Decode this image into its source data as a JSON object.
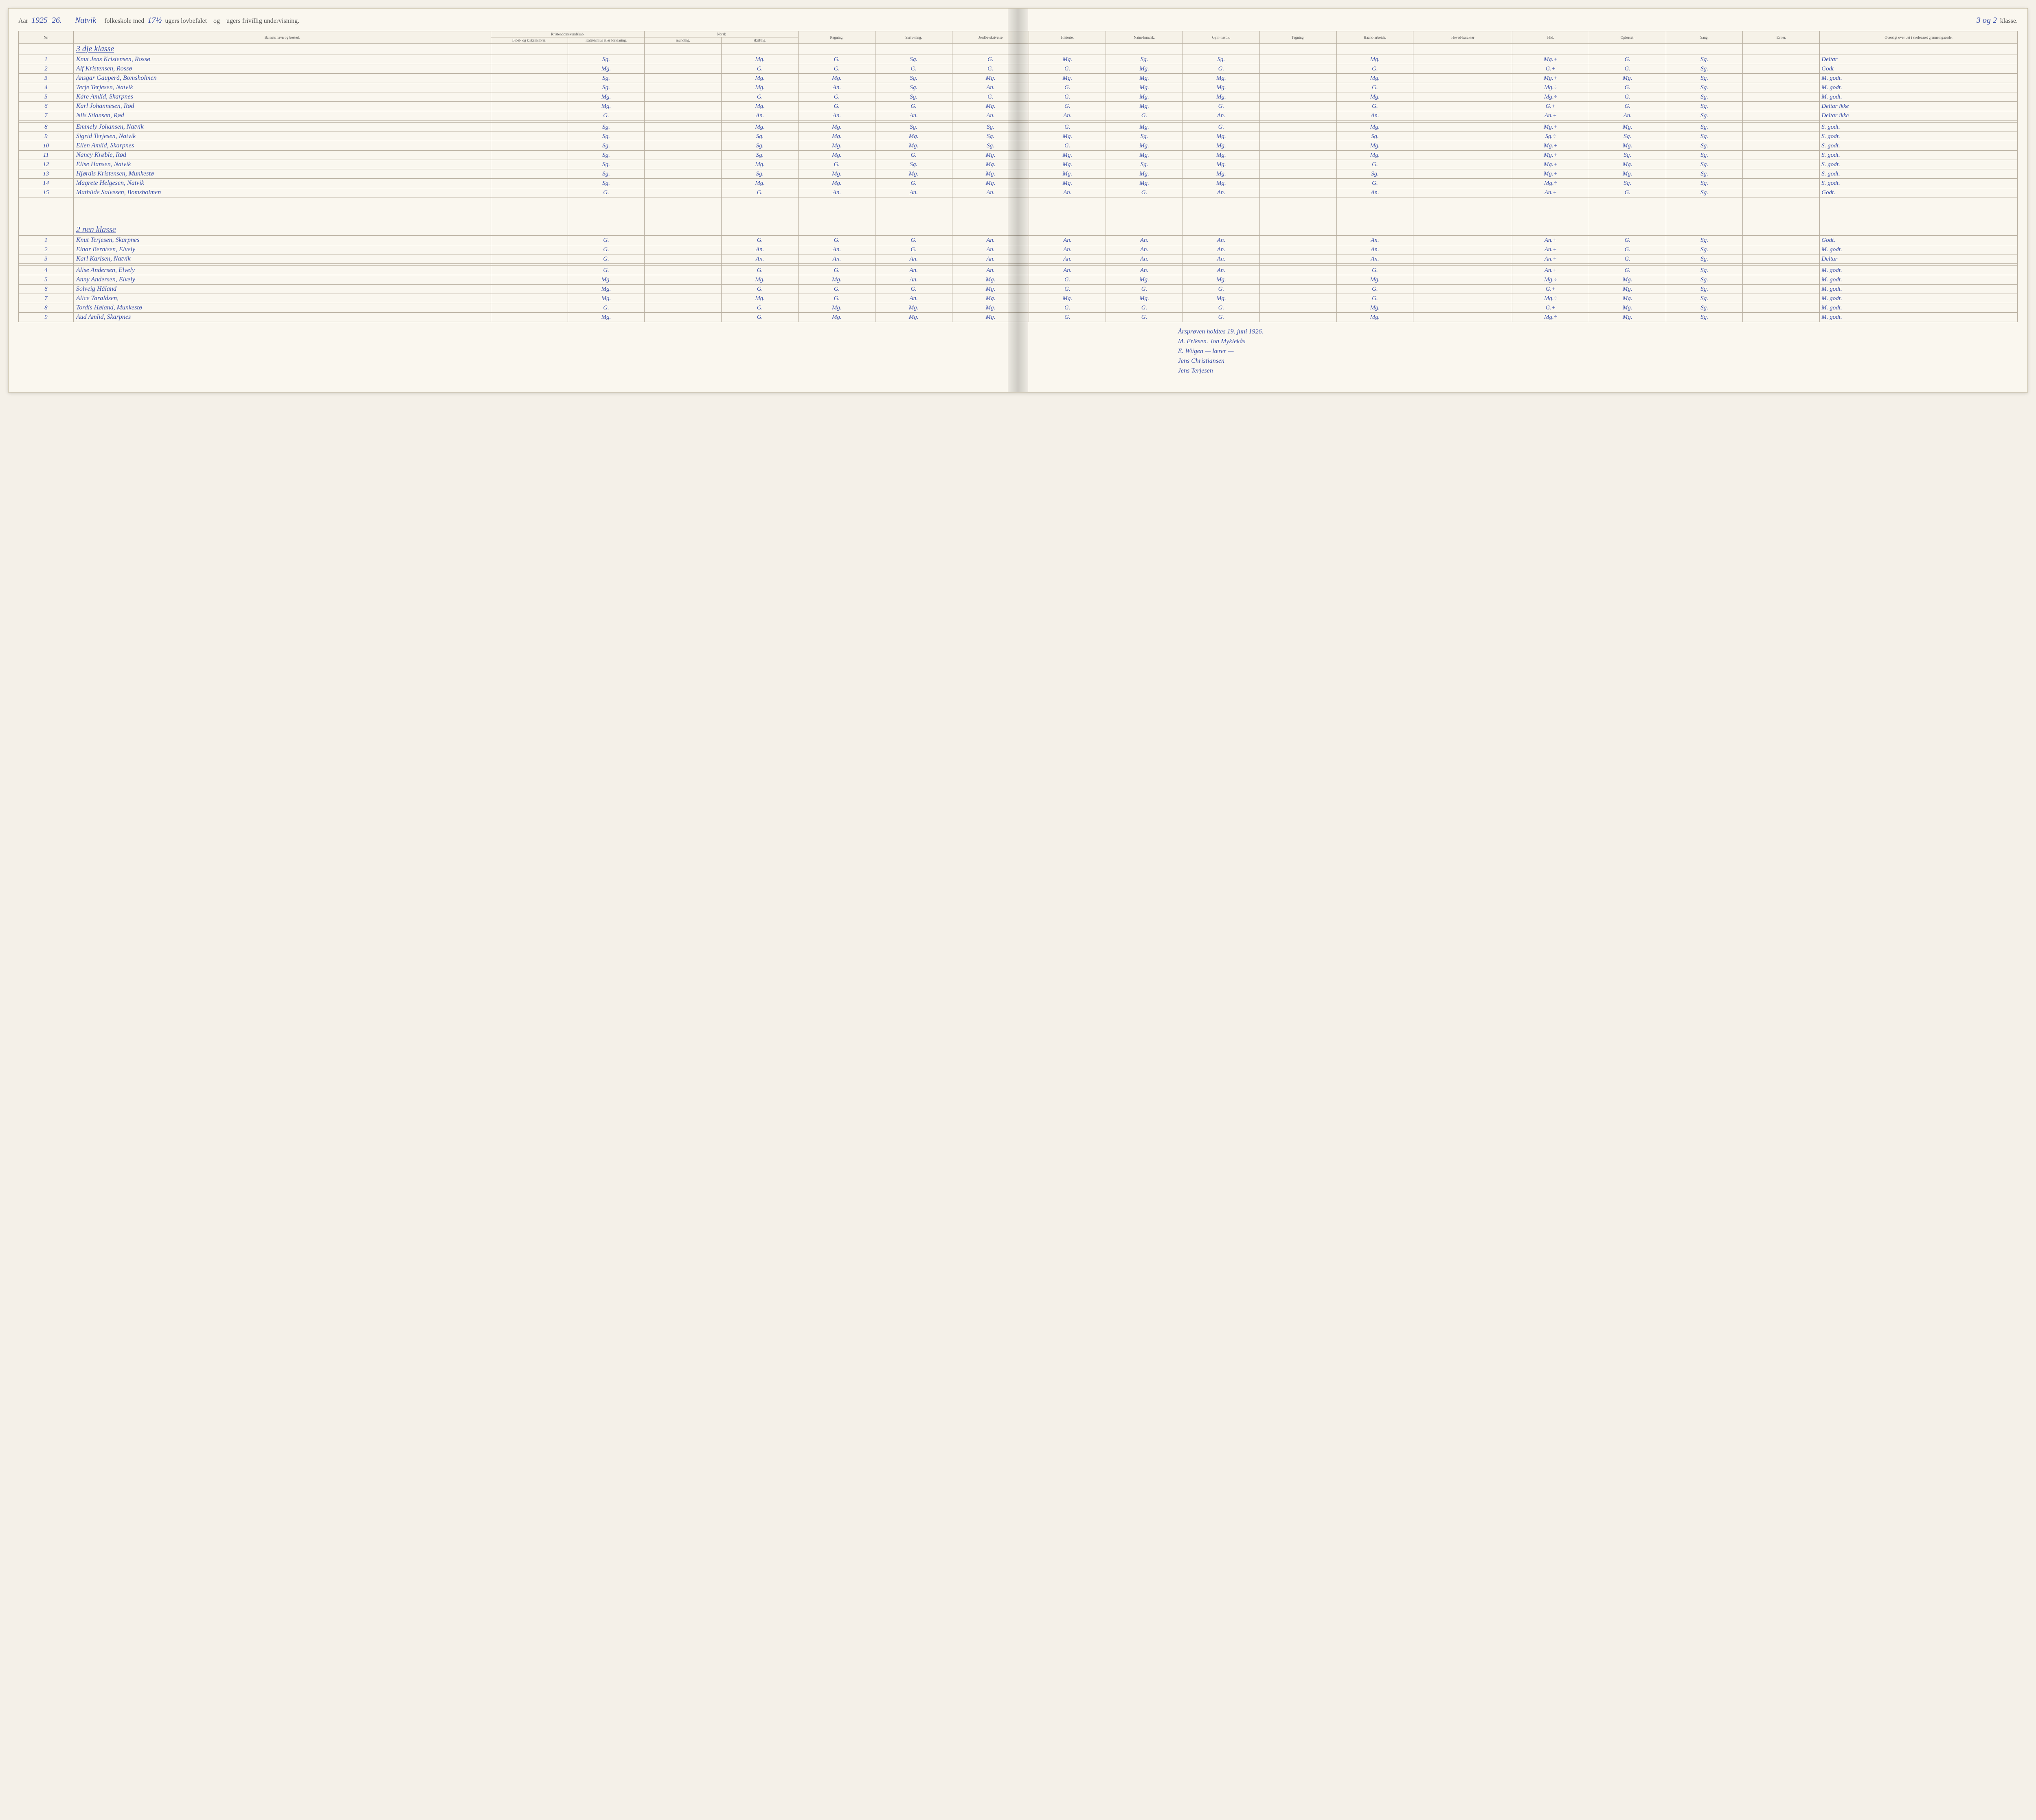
{
  "header": {
    "aar_label": "Aar",
    "aar_value": "1925–26.",
    "school_name": "Natvik",
    "printed_1": "folkeskole med",
    "weeks_lov": "17½",
    "printed_2": "ugers lovbefalet",
    "printed_3": "og",
    "weeks_friv": "",
    "printed_4": "ugers frivillig undervisning.",
    "klasse_prefix": "3 og 2",
    "klasse_label": "klasse."
  },
  "columns": {
    "nr": "Nr.",
    "navn": "Barnets navn og bosted.",
    "kristgrp": "Kristendomskundskab.",
    "krist_a": "Bibel- og kirkehistorie.",
    "krist_b": "Katekismus eller forklaring.",
    "norskgrp": "Norsk",
    "norsk_a": "mundtlig.",
    "norsk_b": "skriftlig.",
    "regning": "Regning.",
    "skrivning": "Skriv-ning.",
    "jordb": "Jordbe-skrivelse",
    "historie": "Historie.",
    "natur": "Natur-kundsk.",
    "gym": "Gym-nastik.",
    "tegning": "Tegning.",
    "haand": "Haand-arbeide.",
    "hoved": "Hoved-karakter",
    "flid": "Flid.",
    "opf": "Opførsel.",
    "sang": "Sang.",
    "evner": "Evner.",
    "oversigt": "Oversigt over det i skoleaaret gjennemgaaede."
  },
  "sections": [
    {
      "title": "3 dje klasse",
      "rows": [
        {
          "nr": "1",
          "name": "Knut Jens Kristensen, Rossø",
          "g": [
            "",
            "Sg.",
            "",
            "Mg.",
            "G.",
            "Sg.",
            "G.",
            "Mg.",
            "Sg.",
            "Sg.",
            "",
            "Mg.",
            "",
            "Mg.+",
            "G.",
            "Sg.",
            "",
            ""
          ],
          "ov": "Deltar"
        },
        {
          "nr": "2",
          "name": "Alf Kristensen, Rossø",
          "g": [
            "",
            "Mg.",
            "",
            "G.",
            "G.",
            "G.",
            "G.",
            "G.",
            "Mg.",
            "G.",
            "",
            "G.",
            "",
            "G.+",
            "G.",
            "Sg.",
            "",
            ""
          ],
          "ov": "Godt"
        },
        {
          "nr": "3",
          "name": "Ansgar Gauperå, Bomsholmen",
          "g": [
            "",
            "Sg.",
            "",
            "Mg.",
            "Mg.",
            "Sg.",
            "Mg.",
            "Mg.",
            "Mg.",
            "Mg.",
            "",
            "Mg.",
            "",
            "Mg.+",
            "Mg.",
            "Sg.",
            "",
            ""
          ],
          "ov": "M. godt."
        },
        {
          "nr": "4",
          "name": "Terje Terjesen, Natvik",
          "g": [
            "",
            "Sg.",
            "",
            "Mg.",
            "An.",
            "Sg.",
            "An.",
            "G.",
            "Mg.",
            "Mg.",
            "",
            "G.",
            "",
            "Mg.÷",
            "G.",
            "Sg.",
            "",
            ""
          ],
          "ov": "M. godt."
        },
        {
          "nr": "5",
          "name": "Kåre Amlid, Skarpnes",
          "g": [
            "",
            "Mg.",
            "",
            "G.",
            "G.",
            "Sg.",
            "G.",
            "G.",
            "Mg.",
            "Mg.",
            "",
            "Mg.",
            "",
            "Mg.÷",
            "G.",
            "Sg.",
            "",
            ""
          ],
          "ov": "M. godt."
        },
        {
          "nr": "6",
          "name": "Karl Johannesen, Rød",
          "g": [
            "",
            "Mg.",
            "",
            "Mg.",
            "G.",
            "G.",
            "Mg.",
            "G.",
            "Mg.",
            "G.",
            "",
            "G.",
            "",
            "G.+",
            "G.",
            "Sg.",
            "",
            ""
          ],
          "ov": "Deltar ikke"
        },
        {
          "nr": "7",
          "name": "Nils Stiansen, Rød",
          "g": [
            "",
            "G.",
            "",
            "An.",
            "An.",
            "An.",
            "An.",
            "An.",
            "G.",
            "An.",
            "",
            "An.",
            "",
            "An.+",
            "An.",
            "Sg.",
            "",
            ""
          ],
          "ov": "Deltar ikke"
        },
        {
          "nr": "",
          "name": "",
          "g": [
            "",
            "",
            "",
            "",
            "",
            "",
            "",
            "",
            "",
            "",
            "",
            "",
            "",
            "",
            "",
            "",
            "",
            ""
          ],
          "ov": ""
        },
        {
          "nr": "8",
          "name": "Emmely Johansen, Natvik",
          "g": [
            "",
            "Sg.",
            "",
            "Mg.",
            "Mg.",
            "Sg.",
            "Sg.",
            "G.",
            "Mg.",
            "G.",
            "",
            "Mg.",
            "",
            "Mg.+",
            "Mg.",
            "Sg.",
            "",
            ""
          ],
          "ov": "S. godt."
        },
        {
          "nr": "9",
          "name": "Sigrid Terjesen, Natvik",
          "g": [
            "",
            "Sg.",
            "",
            "Sg.",
            "Mg.",
            "Mg.",
            "Sg.",
            "Mg.",
            "Sg.",
            "Mg.",
            "",
            "Sg.",
            "",
            "Sg.÷",
            "Sg.",
            "Sg.",
            "",
            ""
          ],
          "ov": "S. godt."
        },
        {
          "nr": "10",
          "name": "Ellen Amlid, Skarpnes",
          "g": [
            "",
            "Sg.",
            "",
            "Sg.",
            "Mg.",
            "Mg.",
            "Sg.",
            "G.",
            "Mg.",
            "Mg.",
            "",
            "Mg.",
            "",
            "Mg.+",
            "Mg.",
            "Sg.",
            "",
            ""
          ],
          "ov": "S. godt."
        },
        {
          "nr": "11",
          "name": "Nancy Krøble, Rød",
          "g": [
            "",
            "Sg.",
            "",
            "Sg.",
            "Mg.",
            "G.",
            "Mg.",
            "Mg.",
            "Mg.",
            "Mg.",
            "",
            "Mg.",
            "",
            "Mg.+",
            "Sg.",
            "Sg.",
            "",
            ""
          ],
          "ov": "S. godt."
        },
        {
          "nr": "12",
          "name": "Elise Hansen, Natvik",
          "g": [
            "",
            "Sg.",
            "",
            "Mg.",
            "G.",
            "Sg.",
            "Mg.",
            "Mg.",
            "Sg.",
            "Mg.",
            "",
            "G.",
            "",
            "Mg.+",
            "Mg.",
            "Sg.",
            "",
            ""
          ],
          "ov": "S. godt."
        },
        {
          "nr": "13",
          "name": "Hjørdis Kristensen, Munkestø",
          "g": [
            "",
            "Sg.",
            "",
            "Sg.",
            "Mg.",
            "Mg.",
            "Mg.",
            "Mg.",
            "Mg.",
            "Mg.",
            "",
            "Sg.",
            "",
            "Mg.+",
            "Mg.",
            "Sg.",
            "",
            ""
          ],
          "ov": "S. godt."
        },
        {
          "nr": "14",
          "name": "Magrete Helgesen, Natvik",
          "g": [
            "",
            "Sg.",
            "",
            "Mg.",
            "Mg.",
            "G.",
            "Mg.",
            "Mg.",
            "Mg.",
            "Mg.",
            "",
            "G.",
            "",
            "Mg.÷",
            "Sg.",
            "Sg.",
            "",
            ""
          ],
          "ov": "S. godt."
        },
        {
          "nr": "15",
          "name": "Mathilde Salvesen, Bomsholmen",
          "g": [
            "",
            "G.",
            "",
            "G.",
            "An.",
            "An.",
            "An.",
            "An.",
            "G.",
            "An.",
            "",
            "An.",
            "",
            "An.+",
            "G.",
            "Sg.",
            "",
            ""
          ],
          "ov": "Godt."
        }
      ]
    },
    {
      "title": "2 nen klasse",
      "rows": [
        {
          "nr": "1",
          "name": "Knut Terjesen, Skarpnes",
          "g": [
            "",
            "G.",
            "",
            "G.",
            "G.",
            "G.",
            "An.",
            "An.",
            "An.",
            "An.",
            "",
            "An.",
            "",
            "An.+",
            "G.",
            "Sg.",
            "",
            ""
          ],
          "ov": "Godt."
        },
        {
          "nr": "2",
          "name": "Einar Berntsen, Elvely",
          "g": [
            "",
            "G.",
            "",
            "An.",
            "An.",
            "G.",
            "An.",
            "An.",
            "An.",
            "An.",
            "",
            "An.",
            "",
            "An.+",
            "G.",
            "Sg.",
            "",
            ""
          ],
          "ov": "M. godt."
        },
        {
          "nr": "3",
          "name": "Karl Karlsen, Natvik",
          "g": [
            "",
            "G.",
            "",
            "An.",
            "An.",
            "An.",
            "An.",
            "An.",
            "An.",
            "An.",
            "",
            "An.",
            "",
            "An.+",
            "G.",
            "Sg.",
            "",
            ""
          ],
          "ov": "Deltar"
        },
        {
          "nr": "",
          "name": "",
          "g": [
            "",
            "",
            "",
            "",
            "",
            "",
            "",
            "",
            "",
            "",
            "",
            "",
            "",
            "",
            "",
            "",
            "",
            ""
          ],
          "ov": ""
        },
        {
          "nr": "4",
          "name": "Alise Andersen, Elvely",
          "g": [
            "",
            "G.",
            "",
            "G.",
            "G.",
            "An.",
            "An.",
            "An.",
            "An.",
            "An.",
            "",
            "G.",
            "",
            "An.+",
            "G.",
            "Sg.",
            "",
            ""
          ],
          "ov": "M. godt."
        },
        {
          "nr": "5",
          "name": "Anny Andersen, Elvely",
          "g": [
            "",
            "Mg.",
            "",
            "Mg.",
            "Mg.",
            "An.",
            "Mg.",
            "G.",
            "Mg.",
            "Mg.",
            "",
            "Mg.",
            "",
            "Mg.÷",
            "Mg.",
            "Sg.",
            "",
            ""
          ],
          "ov": "M. godt."
        },
        {
          "nr": "6",
          "name": "Solveig Håland",
          "g": [
            "",
            "Mg.",
            "",
            "G.",
            "G.",
            "G.",
            "Mg.",
            "G.",
            "G.",
            "G.",
            "",
            "G.",
            "",
            "G.+",
            "Mg.",
            "Sg.",
            "",
            ""
          ],
          "ov": "M. godt."
        },
        {
          "nr": "7",
          "name": "Alice Taraldsen,",
          "g": [
            "",
            "Mg.",
            "",
            "Mg.",
            "G.",
            "An.",
            "Mg.",
            "Mg.",
            "Mg.",
            "Mg.",
            "",
            "G.",
            "",
            "Mg.÷",
            "Mg.",
            "Sg.",
            "",
            ""
          ],
          "ov": "M. godt."
        },
        {
          "nr": "8",
          "name": "Tordis Høland, Munkestø",
          "g": [
            "",
            "G.",
            "",
            "G.",
            "Mg.",
            "Mg.",
            "Mg.",
            "G.",
            "G.",
            "G.",
            "",
            "Mg.",
            "",
            "G.+",
            "Mg.",
            "Sg.",
            "",
            ""
          ],
          "ov": "M. godt."
        },
        {
          "nr": "9",
          "name": "Aud Amlid, Skarpnes",
          "g": [
            "",
            "Mg.",
            "",
            "G.",
            "Mg.",
            "Mg.",
            "Mg.",
            "G.",
            "G.",
            "G.",
            "",
            "Mg.",
            "",
            "Mg.÷",
            "Mg.",
            "Sg.",
            "",
            ""
          ],
          "ov": "M. godt."
        }
      ]
    }
  ],
  "notes": [
    "Årsprøven holdtes 19. juni 1926.",
    "M. Eriksen.     Jon Myklekås",
    "E. Wiigen          — lærer —",
    "Jens Christiansen",
    "Jens Terjesen"
  ]
}
